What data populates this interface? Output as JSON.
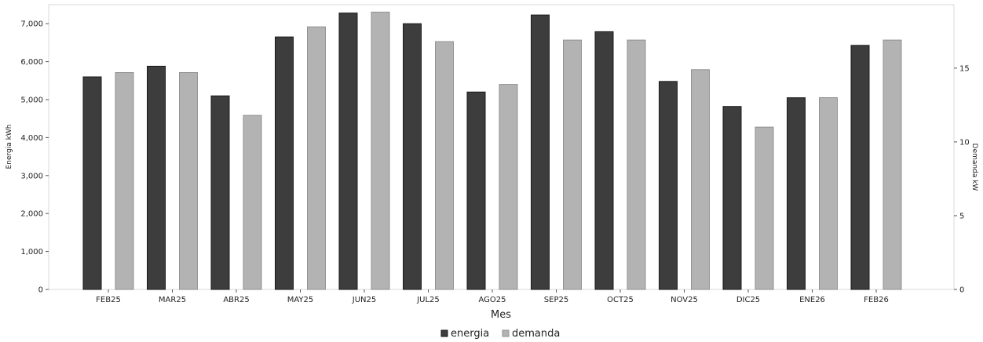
{
  "chart_data": {
    "type": "bar",
    "xlabel": "Mes",
    "ylabel": "Energia kWh",
    "y2label": "Demanda kW",
    "categories": [
      "FEB25",
      "MAR25",
      "ABR25",
      "MAY25",
      "JUN25",
      "JUL25",
      "AGO25",
      "SEP25",
      "OCT25",
      "NOV25",
      "DIC25",
      "ENE26",
      "FEB26"
    ],
    "series": [
      {
        "name": "energia",
        "axis": "left",
        "color": "#3d3d3d",
        "values": [
          5600,
          5880,
          5100,
          6650,
          7280,
          7000,
          5200,
          7230,
          6790,
          5480,
          4820,
          5050,
          6430
        ]
      },
      {
        "name": "demanda",
        "axis": "right",
        "color": "#b3b3b3",
        "values": [
          14.7,
          14.7,
          11.8,
          17.8,
          18.8,
          16.8,
          13.9,
          16.9,
          16.9,
          14.9,
          11.0,
          13.0,
          16.9
        ]
      }
    ],
    "ylim": [
      0,
      7500
    ],
    "yticks": [
      0,
      1000,
      2000,
      3000,
      4000,
      5000,
      6000,
      7000
    ],
    "ytick_labels": [
      "0",
      "1,000",
      "2,000",
      "3,000",
      "4,000",
      "5,000",
      "6,000",
      "7,000"
    ],
    "y2lim": [
      0,
      19.3
    ],
    "y2ticks": [
      0,
      5,
      10,
      15
    ],
    "y2tick_labels": [
      "0",
      "5",
      "10",
      "15"
    ],
    "legend_position": "bottom-center",
    "grid": false
  }
}
